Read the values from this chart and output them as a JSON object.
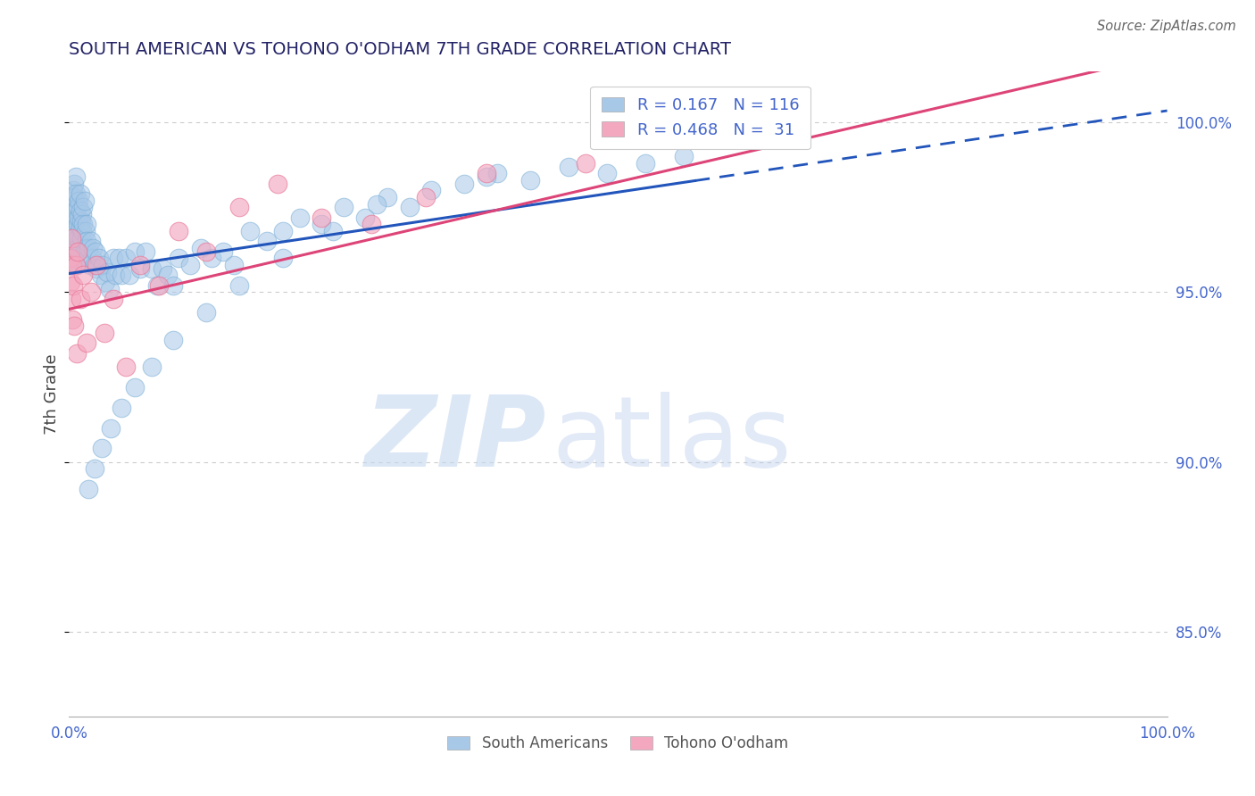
{
  "title": "SOUTH AMERICAN VS TOHONO O'ODHAM 7TH GRADE CORRELATION CHART",
  "source": "Source: ZipAtlas.com",
  "ylabel": "7th Grade",
  "watermark_zip": "ZIP",
  "watermark_atlas": "atlas",
  "blue_R": 0.167,
  "blue_N": 116,
  "pink_R": 0.468,
  "pink_N": 31,
  "blue_fill": "#a8c8e8",
  "blue_edge": "#7aaed6",
  "pink_fill": "#f4a8c0",
  "pink_edge": "#e87898",
  "trend_blue": "#2255bb",
  "trend_pink": "#dd4477",
  "title_color": "#222266",
  "source_color": "#666666",
  "axis_label_color": "#444444",
  "tick_color": "#4466cc",
  "grid_color": "#cccccc",
  "legend_color": "#4466cc",
  "xlim": [
    0.0,
    1.0
  ],
  "ylim": [
    0.825,
    1.015
  ],
  "yticks": [
    0.85,
    0.9,
    0.95,
    1.0
  ],
  "ytick_labels": [
    "85.0%",
    "90.0%",
    "95.0%",
    "100.0%"
  ],
  "xtick_labels": [
    "0.0%",
    "100.0%"
  ],
  "blue_trend_x0": 0.0,
  "blue_trend_x_solid_end": 0.57,
  "blue_trend_x1": 1.0,
  "blue_trend_y_at_0": 0.9555,
  "blue_trend_slope": 0.048,
  "pink_trend_y_at_0": 0.945,
  "pink_trend_slope": 0.075,
  "blue_scatter_x": [
    0.001,
    0.001,
    0.001,
    0.001,
    0.002,
    0.002,
    0.002,
    0.002,
    0.002,
    0.003,
    0.003,
    0.003,
    0.003,
    0.003,
    0.003,
    0.004,
    0.004,
    0.004,
    0.004,
    0.004,
    0.005,
    0.005,
    0.005,
    0.005,
    0.006,
    0.006,
    0.006,
    0.007,
    0.007,
    0.007,
    0.007,
    0.008,
    0.008,
    0.008,
    0.009,
    0.009,
    0.01,
    0.01,
    0.01,
    0.011,
    0.011,
    0.012,
    0.012,
    0.013,
    0.013,
    0.014,
    0.015,
    0.015,
    0.016,
    0.016,
    0.017,
    0.018,
    0.019,
    0.02,
    0.021,
    0.022,
    0.023,
    0.024,
    0.025,
    0.027,
    0.029,
    0.031,
    0.033,
    0.035,
    0.037,
    0.04,
    0.042,
    0.045,
    0.048,
    0.052,
    0.055,
    0.06,
    0.065,
    0.07,
    0.075,
    0.08,
    0.085,
    0.09,
    0.095,
    0.1,
    0.11,
    0.12,
    0.13,
    0.14,
    0.15,
    0.165,
    0.18,
    0.195,
    0.21,
    0.23,
    0.25,
    0.27,
    0.29,
    0.31,
    0.33,
    0.36,
    0.39,
    0.42,
    0.455,
    0.49,
    0.525,
    0.56,
    0.38,
    0.28,
    0.24,
    0.195,
    0.155,
    0.125,
    0.095,
    0.075,
    0.06,
    0.048,
    0.038,
    0.03,
    0.023,
    0.018
  ],
  "blue_scatter_y": [
    0.972,
    0.968,
    0.964,
    0.96,
    0.975,
    0.97,
    0.966,
    0.962,
    0.958,
    0.978,
    0.974,
    0.97,
    0.966,
    0.962,
    0.958,
    0.98,
    0.975,
    0.97,
    0.966,
    0.962,
    0.982,
    0.978,
    0.973,
    0.968,
    0.984,
    0.979,
    0.974,
    0.972,
    0.967,
    0.963,
    0.958,
    0.975,
    0.97,
    0.966,
    0.977,
    0.972,
    0.979,
    0.974,
    0.969,
    0.971,
    0.966,
    0.973,
    0.968,
    0.975,
    0.97,
    0.977,
    0.968,
    0.963,
    0.97,
    0.965,
    0.96,
    0.963,
    0.958,
    0.965,
    0.96,
    0.963,
    0.958,
    0.962,
    0.957,
    0.96,
    0.955,
    0.958,
    0.953,
    0.956,
    0.951,
    0.96,
    0.955,
    0.96,
    0.955,
    0.96,
    0.955,
    0.962,
    0.957,
    0.962,
    0.957,
    0.952,
    0.957,
    0.955,
    0.952,
    0.96,
    0.958,
    0.963,
    0.96,
    0.962,
    0.958,
    0.968,
    0.965,
    0.968,
    0.972,
    0.97,
    0.975,
    0.972,
    0.978,
    0.975,
    0.98,
    0.982,
    0.985,
    0.983,
    0.987,
    0.985,
    0.988,
    0.99,
    0.984,
    0.976,
    0.968,
    0.96,
    0.952,
    0.944,
    0.936,
    0.928,
    0.922,
    0.916,
    0.91,
    0.904,
    0.898,
    0.892
  ],
  "pink_scatter_x": [
    0.001,
    0.001,
    0.002,
    0.002,
    0.003,
    0.003,
    0.004,
    0.005,
    0.006,
    0.007,
    0.008,
    0.01,
    0.013,
    0.016,
    0.02,
    0.025,
    0.032,
    0.04,
    0.052,
    0.065,
    0.082,
    0.1,
    0.125,
    0.155,
    0.19,
    0.23,
    0.275,
    0.325,
    0.38,
    0.47,
    0.6
  ],
  "pink_scatter_y": [
    0.96,
    0.953,
    0.966,
    0.948,
    0.958,
    0.942,
    0.952,
    0.94,
    0.958,
    0.932,
    0.962,
    0.948,
    0.955,
    0.935,
    0.95,
    0.958,
    0.938,
    0.948,
    0.928,
    0.958,
    0.952,
    0.968,
    0.962,
    0.975,
    0.982,
    0.972,
    0.97,
    0.978,
    0.985,
    0.988,
    0.998
  ]
}
